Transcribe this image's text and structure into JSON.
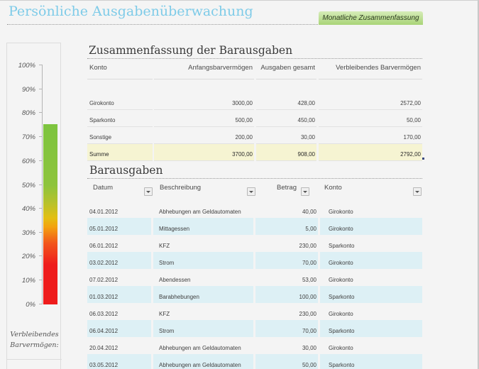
{
  "header": {
    "title": "Persönliche Ausgabenüberwachung",
    "monthly_summary_button": "Monatliche Zusammenfassung"
  },
  "gauge": {
    "ticks": [
      "100%",
      "90%",
      "80%",
      "70%",
      "60%",
      "50%",
      "40%",
      "30%",
      "20%",
      "10%",
      "0%"
    ],
    "value_percent": 75.5,
    "label_line1": "Verbleibendes",
    "label_line2": "Barvermögen:",
    "colors": {
      "low": "#ee1c1c",
      "mid": "#f3a20f",
      "high": "#7dc43f"
    }
  },
  "summary": {
    "title": "Zusammenfassung der Barausgaben",
    "columns": [
      "Konto",
      "Anfangsbarvermögen",
      "Ausgaben gesamt",
      "Verbleibendes Barvermögen"
    ],
    "rows": [
      {
        "konto": "Girokonto",
        "start": "3000,00",
        "spent": "428,00",
        "remaining": "2572,00"
      },
      {
        "konto": "Sparkonto",
        "start": "500,00",
        "spent": "450,00",
        "remaining": "50,00"
      },
      {
        "konto": "Sonstige",
        "start": "200,00",
        "spent": "30,00",
        "remaining": "170,00"
      }
    ],
    "total": {
      "konto": "Summe",
      "start": "3700,00",
      "spent": "908,00",
      "remaining": "2792,00"
    }
  },
  "expenses": {
    "title": "Barausgaben",
    "columns": [
      "Datum",
      "Beschreibung",
      "Betrag",
      "Konto"
    ],
    "rows": [
      {
        "date": "04.01.2012",
        "desc": "Abhebungen am Geldautomaten",
        "amount": "40,00",
        "account": "Girokonto"
      },
      {
        "date": "05.01.2012",
        "desc": "Mittagessen",
        "amount": "5,00",
        "account": "Girokonto"
      },
      {
        "date": "06.01.2012",
        "desc": "KFZ",
        "amount": "230,00",
        "account": "Sparkonto"
      },
      {
        "date": "03.02.2012",
        "desc": "Strom",
        "amount": "70,00",
        "account": "Girokonto"
      },
      {
        "date": "07.02.2012",
        "desc": "Abendessen",
        "amount": "53,00",
        "account": "Girokonto"
      },
      {
        "date": "01.03.2012",
        "desc": "Barabhebungen",
        "amount": "100,00",
        "account": "Sparkonto"
      },
      {
        "date": "06.03.2012",
        "desc": "KFZ",
        "amount": "230,00",
        "account": "Girokonto"
      },
      {
        "date": "06.04.2012",
        "desc": "Strom",
        "amount": "70,00",
        "account": "Sparkonto"
      },
      {
        "date": "20.04.2012",
        "desc": "Abhebungen am Geldautomaten",
        "amount": "30,00",
        "account": "Girokonto"
      },
      {
        "date": "03.05.2012",
        "desc": "Abhebungen am Geldautomaten",
        "amount": "50,00",
        "account": "Sparkonto"
      }
    ]
  }
}
